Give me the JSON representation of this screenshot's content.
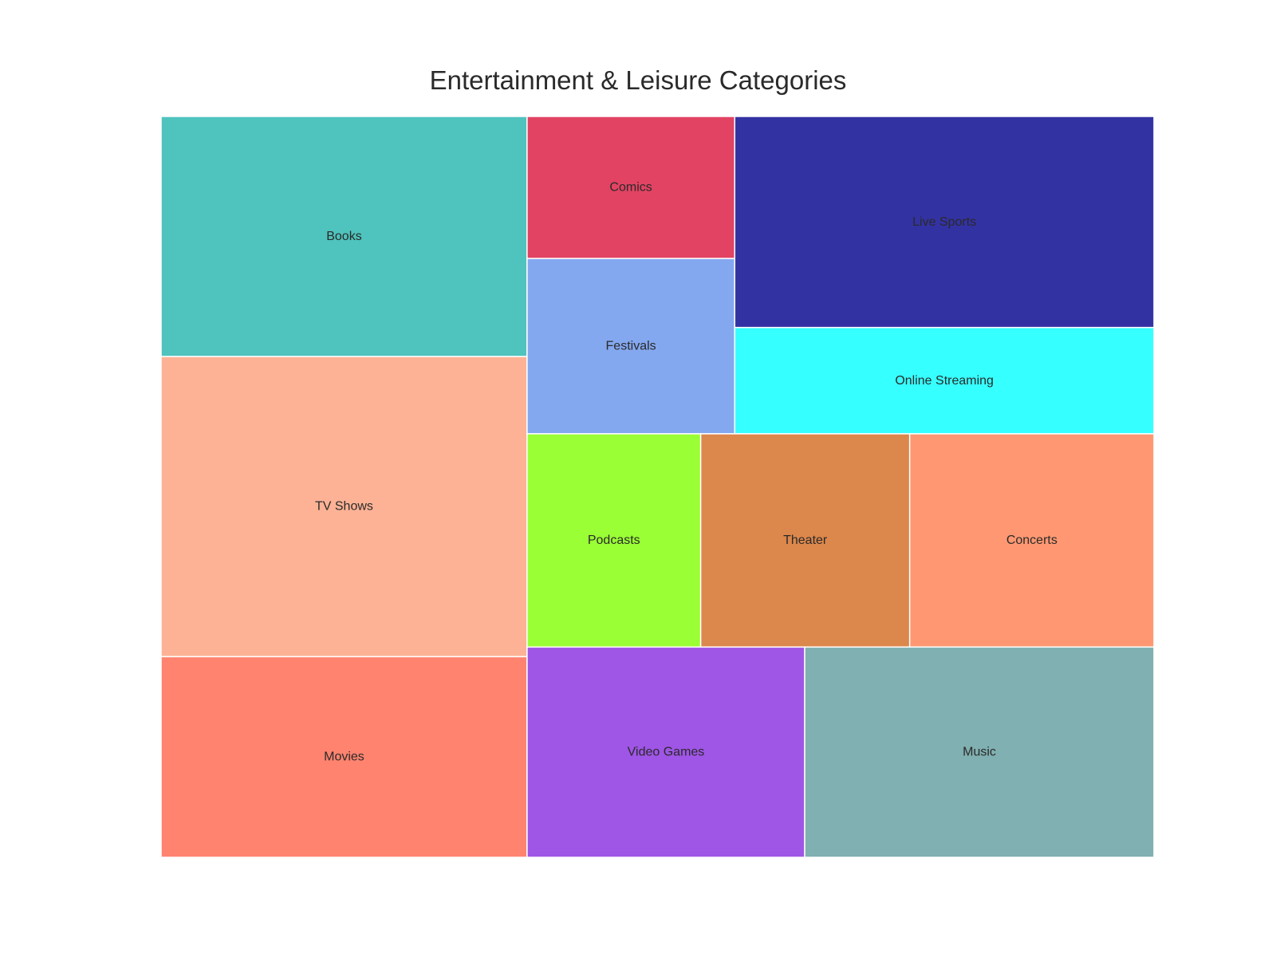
{
  "chart_data": {
    "type": "treemap",
    "title": "Entertainment & Leisure Categories",
    "unit_note": "",
    "items": [
      {
        "label": "Books",
        "value": 14,
        "color": "#4fc3bd"
      },
      {
        "label": "TV Shows",
        "value": 17.5,
        "color": "#fdb295"
      },
      {
        "label": "Movies",
        "value": 11.7,
        "color": "#ff836f"
      },
      {
        "label": "Comics",
        "value": 4.7,
        "color": "#e24363"
      },
      {
        "label": "Festivals",
        "value": 5.8,
        "color": "#84a8ef"
      },
      {
        "label": "Live Sports",
        "value": 14.1,
        "color": "#3332a3"
      },
      {
        "label": "Online Streaming",
        "value": 7.1,
        "color": "#36ffff"
      },
      {
        "label": "Podcasts",
        "value": 5.9,
        "color": "#9aff35"
      },
      {
        "label": "Theater",
        "value": 7.1,
        "color": "#dc874b"
      },
      {
        "label": "Concerts",
        "value": 8.3,
        "color": "#ff9872"
      },
      {
        "label": "Video Games",
        "value": 9.3,
        "color": "#9f55e6"
      },
      {
        "label": "Music",
        "value": 11.7,
        "color": "#80b0b1"
      }
    ]
  }
}
